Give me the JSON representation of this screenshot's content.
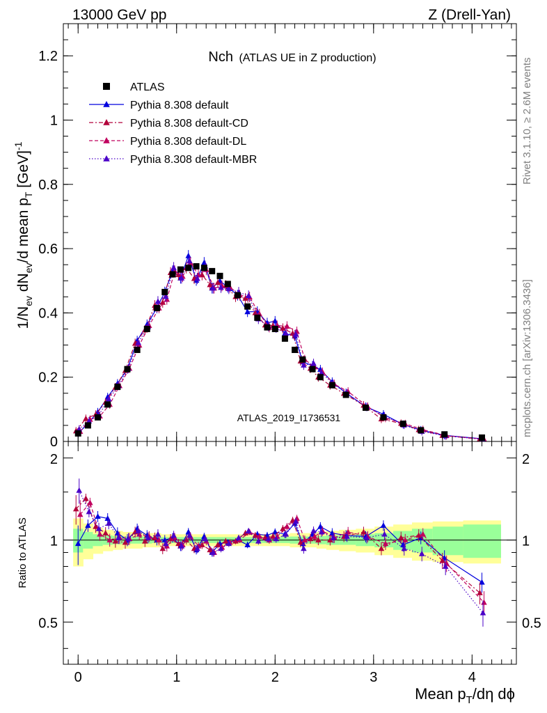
{
  "header": {
    "left": "13000 GeV pp",
    "right": "Z (Drell-Yan)"
  },
  "side": {
    "rivet": "Rivet 3.1.10, ≥ 2.6M events",
    "mcplots": "mcplots.cern.ch [arXiv:1306.3436]"
  },
  "colors": {
    "atlas": "#000000",
    "default": "#0000dd",
    "cd": "#b2003a",
    "dl": "#c0005e",
    "mbr": "#4a00c8",
    "band_outer": "#ffff99",
    "band_inner": "#99ff99",
    "watermark": "#a0a0a0"
  },
  "chart_data": {
    "type": "line",
    "title": "Nch",
    "subtitle": "(ATLAS UE in Z production)",
    "watermark": "ATLAS_2019_I1736531",
    "xlabel": "Mean p_T/dη dϕ",
    "ylabel": "1/N_ev dN_ev/d mean p_T [GeV]^-1",
    "ratio_ylabel": "Ratio to ATLAS",
    "xlim": [
      -0.15,
      4.45
    ],
    "ylim": [
      0,
      1.3
    ],
    "ratio_ylim": [
      0.35,
      2.3
    ],
    "xticks": [
      "0",
      "1",
      "2",
      "3",
      "4"
    ],
    "yticks": [
      "0",
      "0.2",
      "0.4",
      "0.6",
      "0.8",
      "1",
      "1.2"
    ],
    "ratio_yticks": [
      "0.5",
      "1",
      "2"
    ],
    "legend_position": "top-left",
    "x": [
      0.0,
      0.1,
      0.2,
      0.3,
      0.4,
      0.5,
      0.6,
      0.7,
      0.8,
      0.88,
      0.96,
      1.04,
      1.12,
      1.2,
      1.28,
      1.36,
      1.44,
      1.52,
      1.62,
      1.72,
      1.82,
      1.92,
      2.0,
      2.1,
      2.2,
      2.28,
      2.38,
      2.46,
      2.58,
      2.72,
      2.92,
      3.1,
      3.3,
      3.48,
      3.72,
      4.1
    ],
    "atlas": [
      0.025,
      0.05,
      0.075,
      0.115,
      0.17,
      0.225,
      0.285,
      0.35,
      0.415,
      0.465,
      0.52,
      0.535,
      0.54,
      0.545,
      0.54,
      0.53,
      0.515,
      0.49,
      0.455,
      0.42,
      0.385,
      0.355,
      0.35,
      0.32,
      0.285,
      0.255,
      0.225,
      0.2,
      0.175,
      0.145,
      0.105,
      0.075,
      0.055,
      0.035,
      0.022,
      0.012
    ],
    "series": [
      {
        "name": "Pythia 8.308 default",
        "style": "solid",
        "ratio": [
          0.97,
          1.13,
          1.22,
          1.2,
          1.06,
          1.0,
          1.1,
          1.04,
          1.0,
          1.0,
          1.02,
          0.95,
          1.07,
          0.92,
          1.03,
          0.9,
          0.97,
          0.98,
          1.0,
          0.96,
          1.05,
          1.04,
          1.07,
          1.05,
          1.15,
          0.97,
          1.05,
          1.12,
          1.06,
          1.04,
          1.03,
          1.13,
          0.96,
          1.02,
          0.86,
          0.7
        ]
      },
      {
        "name": "Pythia 8.308 default-CD",
        "style": "dashdot",
        "ratio": [
          1.3,
          1.42,
          1.12,
          1.06,
          0.99,
          0.98,
          1.07,
          0.99,
          1.02,
          0.93,
          1.01,
          0.97,
          1.0,
          0.93,
          0.96,
          0.92,
          0.96,
          0.99,
          0.99,
          1.06,
          1.04,
          1.02,
          1.03,
          1.1,
          1.18,
          0.98,
          1.01,
          1.0,
          1.0,
          1.03,
          1.07,
          0.93,
          1.02,
          1.04,
          0.84,
          0.64
        ]
      },
      {
        "name": "Pythia 8.308 default-DL",
        "style": "dashed",
        "ratio": [
          1.24,
          1.37,
          1.05,
          1.0,
          1.02,
          1.01,
          1.05,
          1.03,
          1.0,
          0.95,
          1.02,
          0.96,
          1.03,
          0.95,
          0.99,
          0.9,
          0.94,
          0.98,
          1.0,
          1.07,
          1.03,
          1.0,
          1.03,
          1.12,
          1.2,
          1.0,
          1.03,
          1.08,
          1.02,
          1.07,
          1.03,
          0.97,
          1.0,
          1.05,
          0.82,
          0.59
        ]
      },
      {
        "name": "Pythia 8.308 default-MBR",
        "style": "dotted",
        "ratio": [
          1.52,
          1.27,
          1.1,
          1.15,
          1.02,
          1.01,
          1.08,
          1.02,
          1.05,
          0.97,
          1.04,
          0.95,
          1.04,
          0.93,
          1.01,
          0.9,
          0.93,
          0.97,
          1.02,
          1.08,
          0.99,
          1.01,
          1.01,
          1.05,
          1.17,
          0.93,
          1.08,
          1.07,
          1.02,
          1.03,
          1.02,
          1.05,
          0.93,
          0.89,
          0.8,
          0.54
        ]
      }
    ],
    "band_inner": [
      0.1,
      0.07,
      0.05,
      0.04,
      0.035,
      0.03,
      0.03,
      0.03,
      0.025,
      0.025,
      0.025,
      0.025,
      0.025,
      0.025,
      0.025,
      0.025,
      0.025,
      0.025,
      0.025,
      0.025,
      0.025,
      0.025,
      0.025,
      0.025,
      0.03,
      0.03,
      0.03,
      0.035,
      0.04,
      0.04,
      0.05,
      0.06,
      0.08,
      0.1,
      0.12,
      0.14
    ],
    "band_outer": [
      0.2,
      0.15,
      0.11,
      0.09,
      0.08,
      0.07,
      0.07,
      0.06,
      0.06,
      0.05,
      0.05,
      0.05,
      0.05,
      0.05,
      0.05,
      0.05,
      0.05,
      0.05,
      0.05,
      0.05,
      0.05,
      0.05,
      0.05,
      0.05,
      0.06,
      0.06,
      0.06,
      0.07,
      0.08,
      0.09,
      0.1,
      0.12,
      0.14,
      0.16,
      0.17,
      0.18
    ]
  }
}
